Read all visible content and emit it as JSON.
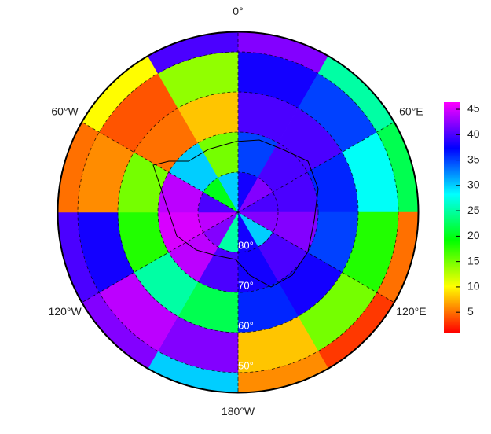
{
  "chart_data": {
    "type": "polar_heatmap",
    "lat_edges": [
      90,
      80,
      70,
      60,
      50,
      45
    ],
    "lon_edges": [
      0,
      30,
      60,
      90,
      120,
      150,
      180,
      210,
      240,
      270,
      300,
      330,
      360
    ],
    "values": [
      [
        38,
        42,
        40,
        42,
        30,
        38,
        25,
        42,
        44,
        40,
        20,
        30
      ],
      [
        35,
        40,
        40,
        42,
        40,
        38,
        40,
        44,
        45,
        44,
        30,
        15
      ],
      [
        40,
        40,
        36,
        35,
        38,
        36,
        22,
        25,
        18,
        15,
        5,
        8
      ],
      [
        38,
        35,
        28,
        18,
        15,
        8,
        42,
        44,
        38,
        6,
        4,
        14
      ],
      [
        42,
        25,
        22,
        5,
        3,
        6,
        30,
        42,
        40,
        5,
        10,
        40
      ]
    ],
    "lon_ticks": [
      {
        "value": 0,
        "label": "0°"
      },
      {
        "value": 60,
        "label": "60°E"
      },
      {
        "value": 120,
        "label": "120°E"
      },
      {
        "value": 180,
        "label": "180°W"
      },
      {
        "value": 240,
        "label": "120°W"
      },
      {
        "value": 300,
        "label": "60°W"
      }
    ],
    "lat_ticks": [
      {
        "value": 80,
        "label": "80°"
      },
      {
        "value": 70,
        "label": "70°"
      },
      {
        "value": 60,
        "label": "60°"
      },
      {
        "value": 50,
        "label": "50°"
      }
    ],
    "clim": [
      1,
      46.4
    ],
    "cticks": [
      5,
      10,
      15,
      20,
      25,
      30,
      35,
      40,
      45
    ]
  }
}
